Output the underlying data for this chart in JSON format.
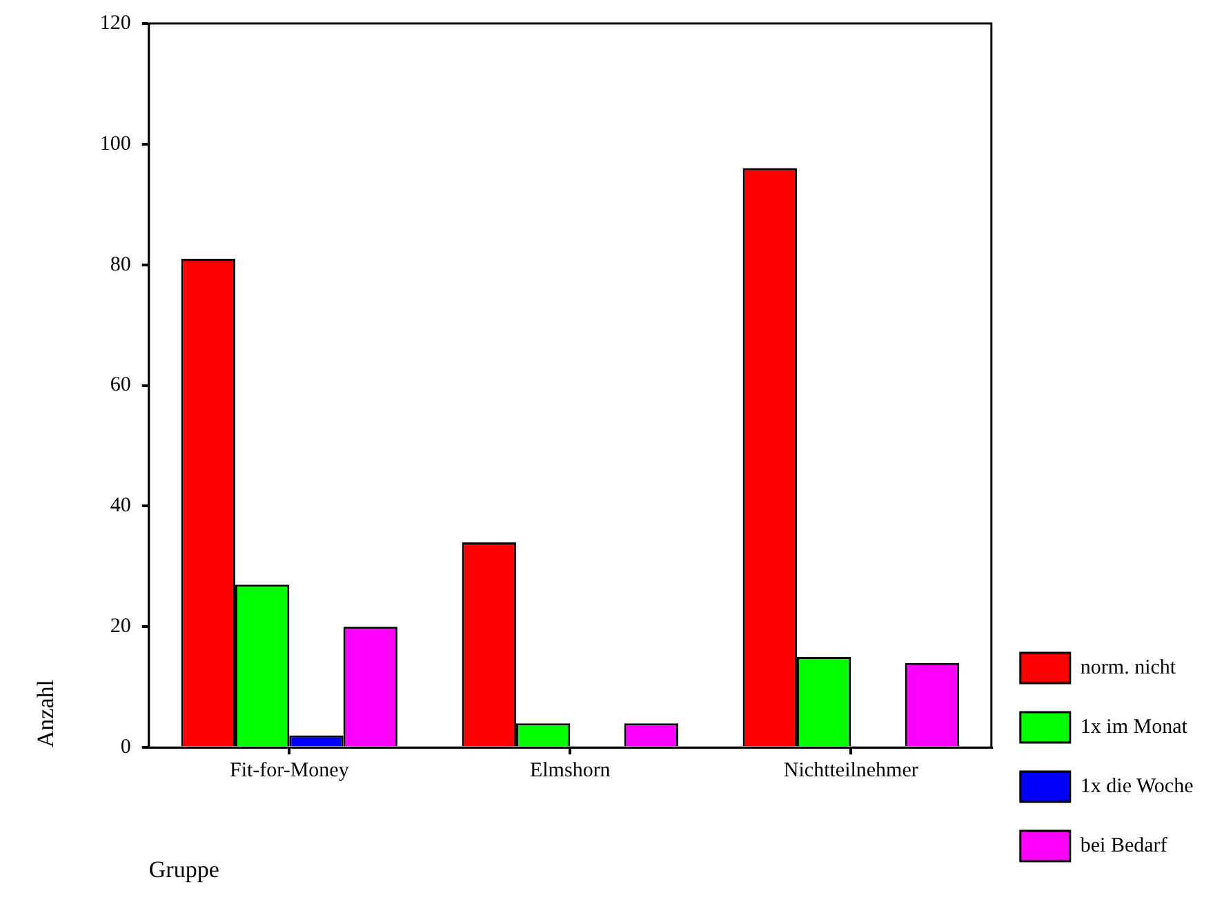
{
  "chart_data": {
    "type": "bar",
    "xlabel": "Gruppe",
    "ylabel": "Anzahl",
    "categories": [
      "Fit-for-Money",
      "Elmshorn",
      "Nichtteilnehmer"
    ],
    "series": [
      {
        "name": "norm. nicht",
        "color": "#ff0000",
        "values": [
          81,
          34,
          96
        ]
      },
      {
        "name": "1x im Monat",
        "color": "#00ff00",
        "values": [
          27,
          4,
          15
        ]
      },
      {
        "name": "1x die Woche",
        "color": "#0000ff",
        "values": [
          2,
          0,
          0
        ]
      },
      {
        "name": "bei Bedarf",
        "color": "#ff00ff",
        "values": [
          20,
          4,
          14
        ]
      }
    ],
    "ylim": [
      0,
      120
    ],
    "yticks": [
      0,
      20,
      40,
      60,
      80,
      100,
      120
    ],
    "grid": false,
    "legend": "right"
  }
}
